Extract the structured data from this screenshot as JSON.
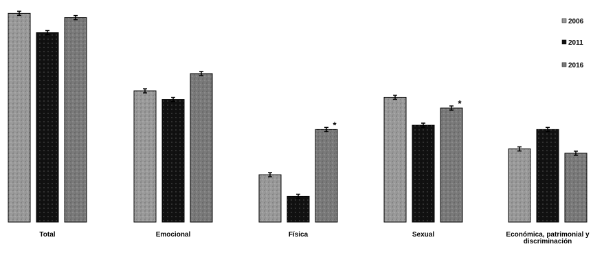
{
  "chart_data": {
    "type": "bar",
    "title": "",
    "xlabel": "",
    "ylabel": "",
    "ylim": [
      0,
      100
    ],
    "grid": false,
    "legend_position": "top-right",
    "categories": [
      "Total",
      "Emocional",
      "Física",
      "Sexual",
      "Económica, patrimonial y discriminación"
    ],
    "series": [
      {
        "name": "2006",
        "color": "#9a9a9a",
        "values": [
          97,
          61,
          22,
          58,
          34
        ],
        "significant": [
          false,
          false,
          false,
          false,
          false
        ]
      },
      {
        "name": "2011",
        "color": "#111111",
        "values": [
          88,
          57,
          12,
          45,
          43
        ],
        "significant": [
          false,
          false,
          false,
          false,
          false
        ]
      },
      {
        "name": "2016",
        "color": "#7a7a7a",
        "values": [
          95,
          69,
          43,
          53,
          32
        ],
        "significant": [
          false,
          false,
          true,
          true,
          false
        ]
      }
    ],
    "significance_marker": "*"
  }
}
